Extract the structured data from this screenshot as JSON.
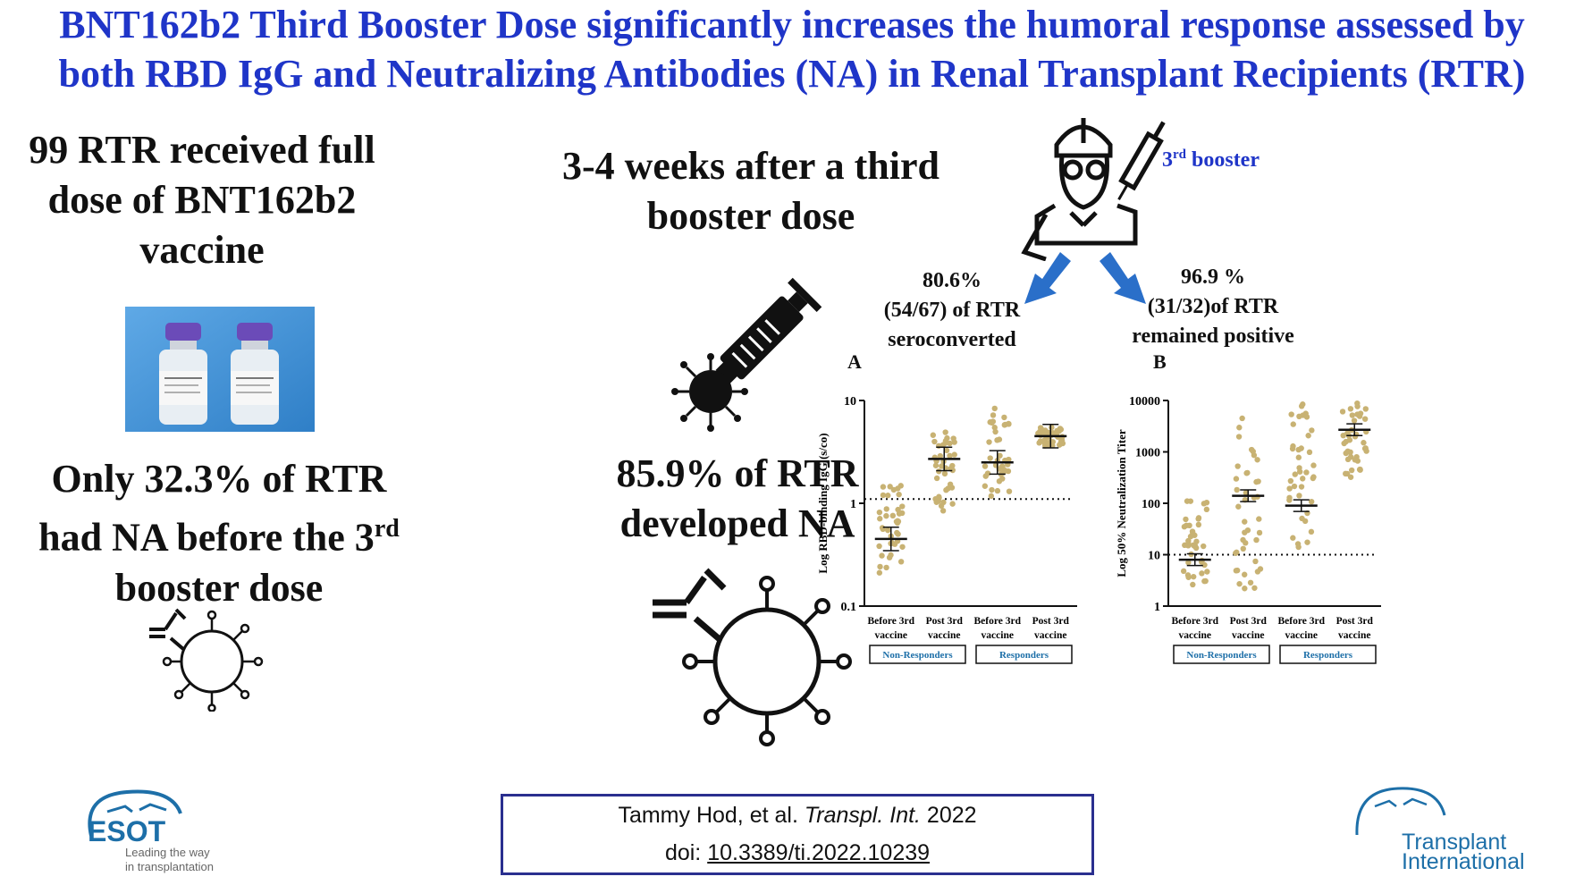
{
  "title": {
    "line1": "BNT162b2 Third Booster Dose significantly increases the humoral response assessed by",
    "line2": "both RBD IgG and Neutralizing Antibodies (NA) in Renal Transplant Recipients (RTR)"
  },
  "left": {
    "top_text": [
      "99 RTR received full",
      "dose of BNT162b2",
      "vaccine"
    ],
    "bottom_text_pre": "Only 32.3% of RTR",
    "bottom_text_line2": "had NA before the 3",
    "bottom_text_sup": "rd",
    "bottom_text_line3": "booster dose"
  },
  "middle": {
    "top_text": [
      "3-4 weeks after a third",
      "booster dose"
    ],
    "bottom_text": [
      "85.9% of RTR",
      "developed NA"
    ]
  },
  "right": {
    "booster_label_pre": "3",
    "booster_label_sup": "rd",
    "booster_label_post": " booster",
    "left_stat": [
      "80.6%",
      "(54/67) of RTR",
      "seroconverted"
    ],
    "right_stat": [
      "96.9 %",
      "(31/32)of RTR",
      "remained positive"
    ]
  },
  "chart_data": [
    {
      "type": "scatter",
      "panel": "A",
      "ylabel": "Log RBD-binding IgG (s/co)",
      "yscale": "log",
      "ylim": [
        0.1,
        10
      ],
      "yticks": [
        "10",
        "1",
        "0.1"
      ],
      "cutoff": 1.1,
      "categories": [
        "Before 3rd vaccine",
        "Post 3rd vaccine",
        "Before 3rd vaccine",
        "Post 3rd vaccine"
      ],
      "groups": [
        "Non-Responders",
        "Responders"
      ],
      "medians": [
        0.45,
        2.7,
        2.5,
        4.5
      ],
      "ranges": [
        [
          0.2,
          1.5
        ],
        [
          0.8,
          5.5
        ],
        [
          1.1,
          8.5
        ],
        [
          3.5,
          5.5
        ]
      ],
      "point_color": "#c8b273"
    },
    {
      "type": "scatter",
      "panel": "B",
      "ylabel": "Log 50% Neutralization Titer",
      "yscale": "log",
      "ylim": [
        1,
        10000
      ],
      "yticks": [
        "10000",
        "1000",
        "100",
        "10",
        "1"
      ],
      "cutoff": 10,
      "categories": [
        "Before 3rd vaccine",
        "Post 3rd vaccine",
        "Before 3rd vaccine",
        "Post 3rd vaccine"
      ],
      "groups": [
        "Non-Responders",
        "Responders"
      ],
      "medians": [
        8,
        140,
        90,
        2700
      ],
      "ranges": [
        [
          2,
          130
        ],
        [
          2,
          10000
        ],
        [
          10,
          10000
        ],
        [
          250,
          10000
        ]
      ],
      "point_color": "#c8b273"
    }
  ],
  "citation": {
    "authors": "Tammy Hod, et al. ",
    "journal": "Transpl. Int.",
    "year": " 2022",
    "doi_label": "doi: ",
    "doi": "10.3389/ti.2022.10239"
  },
  "logos": {
    "esot_name": "ESOT",
    "esot_tagline1": "Leading the way",
    "esot_tagline2": "in transplantation",
    "ti_line1": "Transplant",
    "ti_line2": "International"
  },
  "colors": {
    "title": "#1f35c8",
    "arrow": "#2a6fc9",
    "points": "#c8b273",
    "logo": "#1d6fa8"
  }
}
